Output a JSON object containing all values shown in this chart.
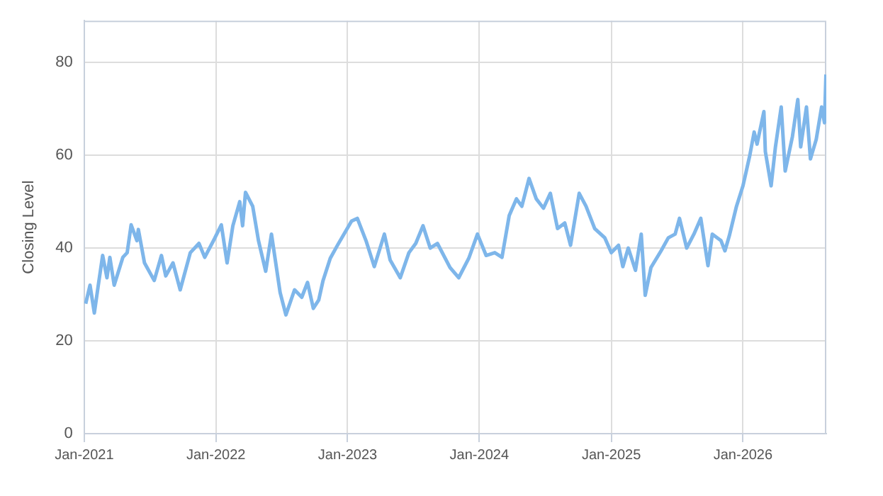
{
  "chart_data": {
    "type": "line",
    "ylabel": "Closing Level",
    "grid": true,
    "legend": false,
    "marker": "none",
    "line_style": "solid",
    "xlim": [
      "2021-01-01",
      "2026-08-20"
    ],
    "ylim": [
      0,
      89
    ],
    "xticks": [
      {
        "value": "2021-01-01",
        "label": "Jan-2021"
      },
      {
        "value": "2022-01-01",
        "label": "Jan-2022"
      },
      {
        "value": "2023-01-01",
        "label": "Jan-2023"
      },
      {
        "value": "2024-01-01",
        "label": "Jan-2024"
      },
      {
        "value": "2025-01-01",
        "label": "Jan-2025"
      },
      {
        "value": "2026-01-01",
        "label": "Jan-2026"
      }
    ],
    "yticks": [
      0,
      20,
      40,
      60,
      80
    ],
    "x": [
      "2021-01-05",
      "2021-01-17",
      "2021-01-29",
      "2021-02-09",
      "2021-02-21",
      "2021-03-05",
      "2021-03-13",
      "2021-03-25",
      "2021-04-18",
      "2021-04-30",
      "2021-05-11",
      "2021-05-27",
      "2021-05-31",
      "2021-06-17",
      "2021-07-14",
      "2021-08-03",
      "2021-08-15",
      "2021-09-04",
      "2021-09-24",
      "2021-10-22",
      "2021-11-15",
      "2021-12-01",
      "2021-12-28",
      "2022-01-16",
      "2022-02-01",
      "2022-02-17",
      "2022-03-08",
      "2022-03-16",
      "2022-03-24",
      "2022-04-13",
      "2022-04-29",
      "2022-05-19",
      "2022-06-04",
      "2022-06-28",
      "2022-07-14",
      "2022-08-07",
      "2022-08-27",
      "2022-09-12",
      "2022-09-28",
      "2022-10-13",
      "2022-10-25",
      "2022-11-14",
      "2022-12-04",
      "2023-01-12",
      "2023-01-28",
      "2023-02-21",
      "2023-03-16",
      "2023-04-13",
      "2023-04-29",
      "2023-05-27",
      "2023-06-20",
      "2023-07-09",
      "2023-07-29",
      "2023-08-18",
      "2023-09-07",
      "2023-10-12",
      "2023-11-05",
      "2023-12-03",
      "2023-12-27",
      "2024-01-20",
      "2024-02-13",
      "2024-03-04",
      "2024-03-24",
      "2024-04-13",
      "2024-04-28",
      "2024-05-18",
      "2024-06-07",
      "2024-06-27",
      "2024-07-16",
      "2024-08-05",
      "2024-08-25",
      "2024-09-10",
      "2024-10-04",
      "2024-10-23",
      "2024-11-16",
      "2024-12-14",
      "2025-01-01",
      "2025-01-21",
      "2025-02-02",
      "2025-02-17",
      "2025-03-09",
      "2025-03-25",
      "2025-04-05",
      "2025-04-21",
      "2025-05-19",
      "2025-06-08",
      "2025-06-27",
      "2025-07-09",
      "2025-07-29",
      "2025-08-18",
      "2025-09-06",
      "2025-09-26",
      "2025-10-08",
      "2025-11-01",
      "2025-11-12",
      "2025-11-24",
      "2025-12-14",
      "2026-01-01",
      "2026-01-20",
      "2026-02-01",
      "2026-02-09",
      "2026-02-28",
      "2026-03-04",
      "2026-03-20",
      "2026-04-01",
      "2026-04-17",
      "2026-04-28",
      "2026-05-18",
      "2026-06-02",
      "2026-06-10",
      "2026-06-26",
      "2026-07-07",
      "2026-07-23",
      "2026-08-07",
      "2026-08-15",
      "2026-08-19"
    ],
    "series": [
      {
        "color": "#7eb6ea",
        "values": [
          28,
          32,
          26,
          32,
          38.4,
          33.6,
          38,
          32,
          38,
          39,
          45,
          41.6,
          44,
          36.8,
          33,
          38.4,
          34,
          36.8,
          31,
          39,
          41,
          38,
          42,
          45,
          36.8,
          44.8,
          50,
          44.8,
          52,
          49,
          41.6,
          35,
          43,
          30.4,
          25.6,
          31,
          29.4,
          32.6,
          27,
          28.8,
          33,
          37.8,
          40.6,
          45.8,
          46.4,
          41.6,
          36,
          43,
          37.4,
          33.6,
          39,
          41,
          44.8,
          40,
          41,
          35.8,
          33.6,
          37.8,
          43,
          38.4,
          39,
          38,
          47,
          50.6,
          49,
          55,
          50.6,
          48.6,
          51.8,
          44.2,
          45.4,
          40.6,
          51.8,
          49,
          44.2,
          42.2,
          39,
          40.6,
          36,
          40,
          35.2,
          43,
          29.8,
          35.8,
          39.4,
          42.2,
          43,
          46.4,
          40,
          43,
          46.4,
          36.2,
          43,
          41.6,
          39.4,
          42.6,
          49,
          53.4,
          60,
          65,
          62.4,
          69.4,
          60.8,
          53.4,
          61.8,
          70.4,
          56.6,
          64,
          72,
          61.8,
          70.4,
          59.2,
          63.4,
          70.4,
          67,
          77.4
        ]
      }
    ]
  }
}
